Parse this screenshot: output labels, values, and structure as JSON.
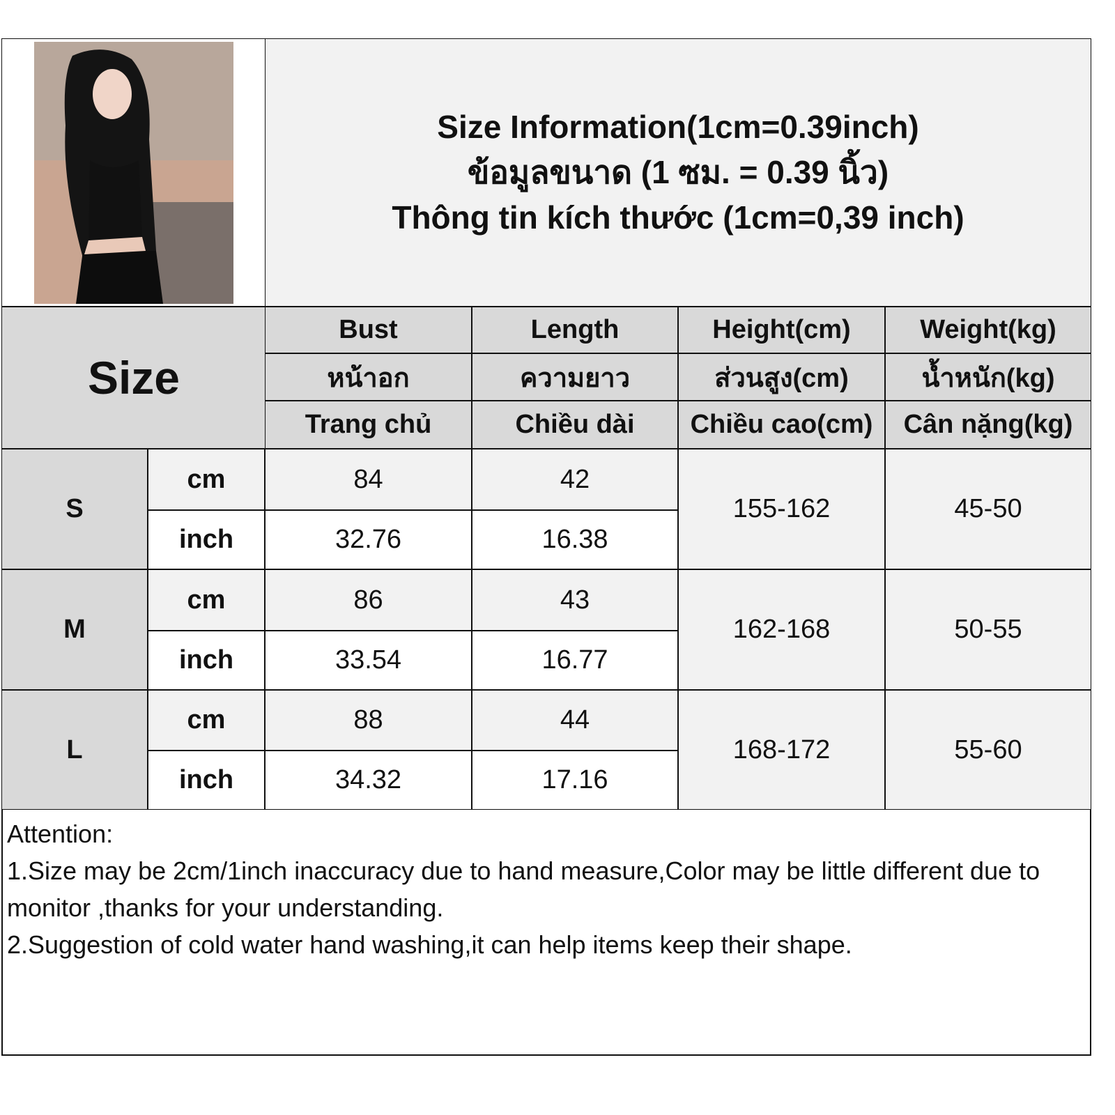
{
  "title": {
    "line1": "Size Information(1cm=0.39inch)",
    "line2": "ข้อมูลขนาด (1 ซม. = 0.39 นิ้ว)",
    "line3": "Thông tin kích thước (1cm=0,39 inch)"
  },
  "size_label": "Size",
  "columns": [
    {
      "en": "Bust",
      "th": "หน้าอก",
      "vi": "Trang chủ"
    },
    {
      "en": "Length",
      "th": "ความยาว",
      "vi": "Chiều dài"
    },
    {
      "en": "Height(cm)",
      "th": "ส่วนสูง(cm)",
      "vi": "Chiều cao(cm)"
    },
    {
      "en": "Weight(kg)",
      "th": "น้ำหนัก(kg)",
      "vi": "Cân nặng(kg)"
    }
  ],
  "rows": [
    {
      "size": "S",
      "cm_label": "cm",
      "inch_label": "inch",
      "bust_cm": "84",
      "length_cm": "42",
      "bust_inch": "32.76",
      "length_inch": "16.38",
      "height": "155-162",
      "weight": "45-50"
    },
    {
      "size": "M",
      "cm_label": "cm",
      "inch_label": "inch",
      "bust_cm": "86",
      "length_cm": "43",
      "bust_inch": "33.54",
      "length_inch": "16.77",
      "height": "162-168",
      "weight": "50-55"
    },
    {
      "size": "L",
      "cm_label": "cm",
      "inch_label": "inch",
      "bust_cm": "88",
      "length_cm": "44",
      "bust_inch": "34.32",
      "length_inch": "17.16",
      "height": "168-172",
      "weight": "55-60"
    }
  ],
  "notes": {
    "heading": "Attention:",
    "line1": "1.Size may be 2cm/1inch inaccuracy due to hand measure,Color may be little different due to monitor ,thanks for your understanding.",
    "line2": "2.Suggestion of cold water hand washing,it can help items keep their shape."
  },
  "colors": {
    "header": "#d9d9d9",
    "light": "#f2f2f2",
    "border": "#111111"
  }
}
